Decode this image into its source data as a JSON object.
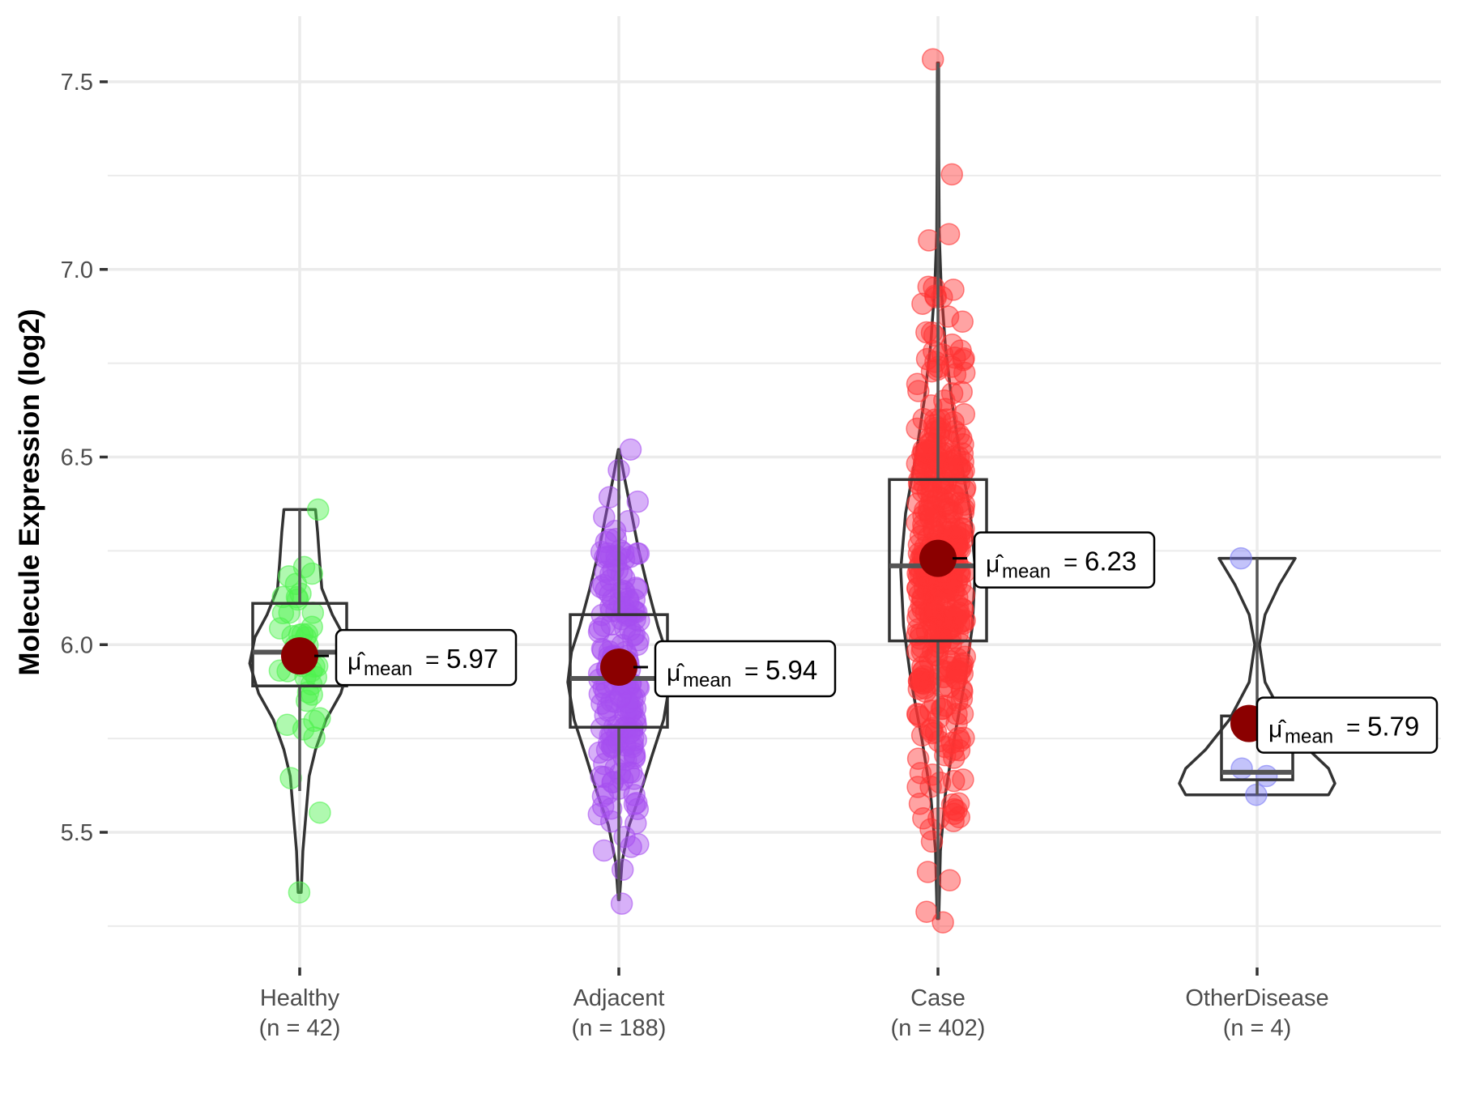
{
  "chart_data": {
    "type": "violin-box-jitter",
    "title": "",
    "xlabel": "",
    "ylabel": "Molecule Expression (log2)",
    "ylim": [
      5.14,
      7.68
    ],
    "yticks": [
      5.5,
      6.0,
      6.5,
      7.0,
      7.5
    ],
    "ytick_labels": [
      "5.5",
      "6.0",
      "6.5",
      "7.0",
      "7.5"
    ],
    "grid": true,
    "legend": "none",
    "mean_label_prefix": "μ̂",
    "mean_label_sub": "mean",
    "categories": [
      {
        "name": "Healthy",
        "n_label": "(n = 42)",
        "n": 42,
        "color": "#4ef24e",
        "mean": 5.97,
        "mean_label": "5.97",
        "q1": 5.89,
        "median": 5.98,
        "q3": 6.11,
        "whisker_low": 5.61,
        "whisker_high": 6.36,
        "min": 5.34,
        "max": 6.36,
        "density": [
          [
            5.34,
            0.03
          ],
          [
            5.45,
            0.06
          ],
          [
            5.55,
            0.12
          ],
          [
            5.65,
            0.18
          ],
          [
            5.72,
            0.3
          ],
          [
            5.8,
            0.5
          ],
          [
            5.87,
            0.78
          ],
          [
            5.95,
            0.95
          ],
          [
            6.02,
            0.85
          ],
          [
            6.08,
            0.62
          ],
          [
            6.15,
            0.42
          ],
          [
            6.22,
            0.38
          ],
          [
            6.3,
            0.34
          ],
          [
            6.36,
            0.3
          ]
        ]
      },
      {
        "name": "Adjacent",
        "n_label": "(n = 188)",
        "n": 188,
        "color": "#a64ff0",
        "mean": 5.94,
        "mean_label": "5.94",
        "q1": 5.78,
        "median": 5.91,
        "q3": 6.08,
        "whisker_low": 5.32,
        "whisker_high": 6.52,
        "min": 5.31,
        "max": 6.52,
        "density": [
          [
            5.32,
            0.01
          ],
          [
            5.42,
            0.06
          ],
          [
            5.52,
            0.2
          ],
          [
            5.6,
            0.4
          ],
          [
            5.7,
            0.62
          ],
          [
            5.8,
            0.85
          ],
          [
            5.9,
            0.97
          ],
          [
            5.98,
            0.9
          ],
          [
            6.05,
            0.74
          ],
          [
            6.15,
            0.55
          ],
          [
            6.25,
            0.38
          ],
          [
            6.35,
            0.24
          ],
          [
            6.45,
            0.1
          ],
          [
            6.52,
            0.01
          ]
        ]
      },
      {
        "name": "Case",
        "n_label": "(n = 402)",
        "n": 402,
        "color": "#ff3333",
        "mean": 6.23,
        "mean_label": "6.23",
        "q1": 6.01,
        "median": 6.21,
        "q3": 6.44,
        "whisker_low": 5.27,
        "whisker_high": 7.55,
        "min": 5.26,
        "max": 7.56,
        "density": [
          [
            5.27,
            0.02
          ],
          [
            5.45,
            0.06
          ],
          [
            5.6,
            0.18
          ],
          [
            5.75,
            0.4
          ],
          [
            5.9,
            0.66
          ],
          [
            6.05,
            0.85
          ],
          [
            6.2,
            0.92
          ],
          [
            6.35,
            0.8
          ],
          [
            6.5,
            0.55
          ],
          [
            6.65,
            0.34
          ],
          [
            6.8,
            0.18
          ],
          [
            6.95,
            0.08
          ],
          [
            7.1,
            0.03
          ],
          [
            7.3,
            0.02
          ],
          [
            7.55,
            0.015
          ]
        ]
      },
      {
        "name": "OtherDisease",
        "n_label": "(n = 4)",
        "n": 4,
        "color": "#7b7bf5",
        "mean": 5.79,
        "mean_label": "5.79",
        "q1": 5.64,
        "median": 5.66,
        "q3": 5.81,
        "whisker_low": 5.6,
        "whisker_high": 6.23,
        "min": 5.6,
        "max": 6.23,
        "points": [
          6.23,
          5.67,
          5.65,
          5.6
        ],
        "density": [
          [
            5.6,
            0.9
          ],
          [
            5.63,
            0.98
          ],
          [
            5.67,
            0.9
          ],
          [
            5.72,
            0.65
          ],
          [
            5.8,
            0.35
          ],
          [
            5.9,
            0.1
          ],
          [
            6.0,
            0.03
          ],
          [
            6.08,
            0.1
          ],
          [
            6.16,
            0.28
          ],
          [
            6.23,
            0.48
          ]
        ]
      }
    ]
  }
}
